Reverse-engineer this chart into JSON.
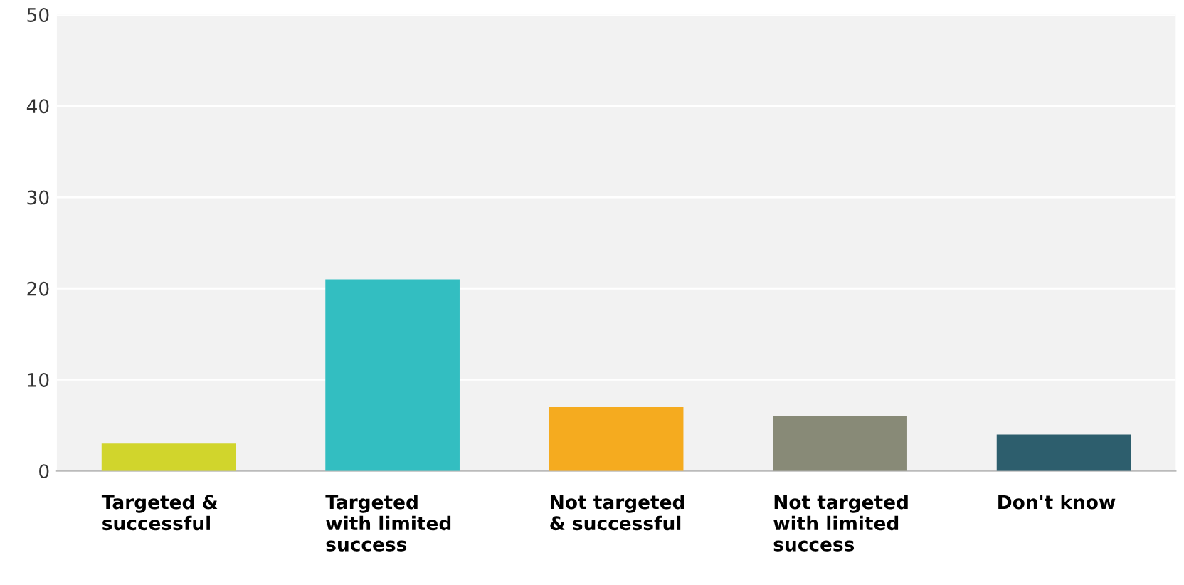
{
  "chart_data": {
    "type": "bar",
    "categories": [
      "Targeted &\nsuccessful",
      "Targeted\nwith limited\nsuccess",
      "Not targeted\n& successful",
      "Not targeted\nwith limited\nsuccess",
      "Don't know"
    ],
    "values": [
      3,
      21,
      7,
      6,
      4
    ],
    "colors": [
      "#d1d52c",
      "#33bec1",
      "#f5ab1f",
      "#888a77",
      "#2d5e6d"
    ],
    "ylim": [
      0,
      50
    ],
    "yticks": [
      0,
      10,
      20,
      30,
      40,
      50
    ],
    "grid": "y"
  }
}
